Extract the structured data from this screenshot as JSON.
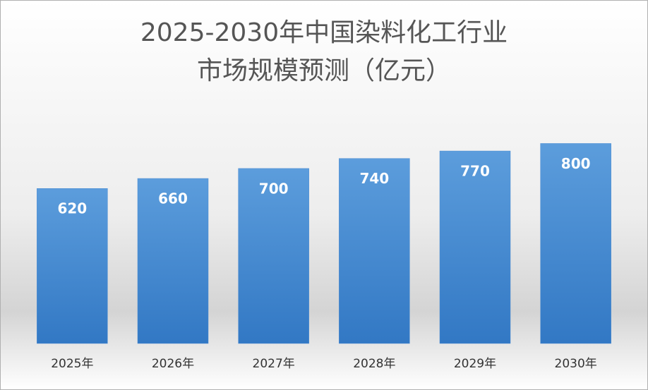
{
  "chart_data": {
    "type": "bar",
    "title": [
      "2025-2030年中国染料化工行业",
      "市场规模预测（亿元）"
    ],
    "categories": [
      "2025年",
      "2026年",
      "2027年",
      "2028年",
      "2029年",
      "2030年"
    ],
    "values": [
      620,
      660,
      700,
      740,
      770,
      800
    ],
    "color": "#4a8bd2",
    "ylim": [
      0,
      900
    ]
  }
}
